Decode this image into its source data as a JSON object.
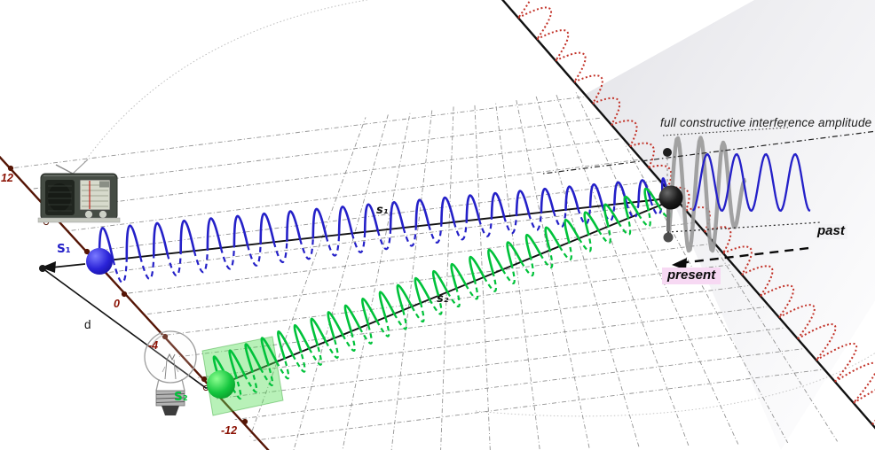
{
  "labels": {
    "amplitude_note": "full constructive interference amplitude",
    "past": "past",
    "present": "present",
    "source1": "S₁",
    "source2": "S₂",
    "ray1": "s₁",
    "ray2": "s₂",
    "distance": "d"
  },
  "axis": {
    "ticks": [
      {
        "value": "12"
      },
      {
        "value": "0"
      },
      {
        "value": "-4"
      },
      {
        "value": "-12"
      }
    ]
  },
  "icons": {
    "radio": "radio-icon",
    "bulb": "light-bulb-icon"
  },
  "colors": {
    "axis": "#551505",
    "tick_text": "#8a1002",
    "wave_blue": "#2420c8",
    "wave_green": "#00c23a",
    "wave_red": "#c23228",
    "sum_gray": "#9a9a9a",
    "grid": "#787878",
    "present_bg": "#f7d9f3",
    "panel_gray": "#d7d7dd",
    "source_panel_green": "#55dd55"
  }
}
